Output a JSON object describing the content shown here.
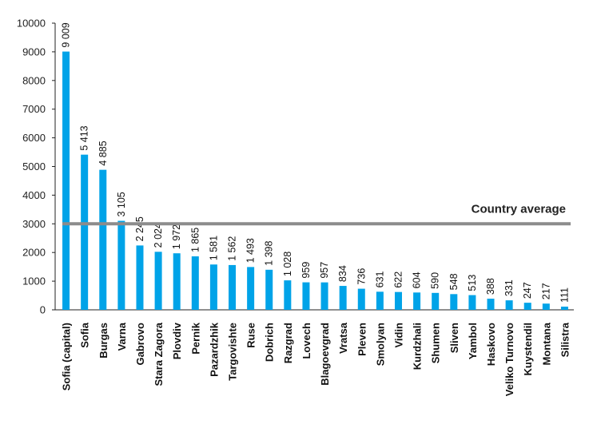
{
  "chart_data": {
    "type": "bar",
    "categories": [
      "Sofia (capital)",
      "Sofia",
      "Burgas",
      "Varna",
      "Gabrovo",
      "Stara Zagora",
      "Plovdiv",
      "Pernik",
      "Pazardzhik",
      "Targovishte",
      "Ruse",
      "Dobrich",
      "Razgrad",
      "Lovech",
      "Blagoevgrad",
      "Vratsa",
      "Pleven",
      "Smolyan",
      "Vidin",
      "Kurdzhali",
      "Shumen",
      "Sliven",
      "Yambol",
      "Haskovo",
      "Veliko Turnovo",
      "Kuystendil",
      "Montana",
      "Silistra"
    ],
    "values": [
      9009,
      5413,
      4885,
      3105,
      2245,
      2024,
      1972,
      1865,
      1581,
      1562,
      1493,
      1398,
      1028,
      959,
      957,
      834,
      736,
      631,
      622,
      604,
      590,
      548,
      513,
      388,
      331,
      247,
      217,
      111
    ],
    "data_labels": [
      "9 009",
      "5 413",
      "4 885",
      "3 105",
      "2 245",
      "2 024",
      "1 972",
      "1 865",
      "1 581",
      "1 562",
      "1 493",
      "1 398",
      "1 028",
      "959",
      "957",
      "834",
      "736",
      "631",
      "622",
      "604",
      "590",
      "548",
      "513",
      "388",
      "331",
      "247",
      "217",
      "111"
    ],
    "yticks": [
      "0",
      "1000",
      "2000",
      "3000",
      "4000",
      "5000",
      "6000",
      "7000",
      "8000",
      "9000",
      "10000"
    ],
    "ylim": [
      0,
      10000
    ],
    "average": 3000,
    "annotation": "Country average",
    "bar_color": "#00a3e8",
    "average_line_color": "#8c8c8c",
    "grid": false
  }
}
